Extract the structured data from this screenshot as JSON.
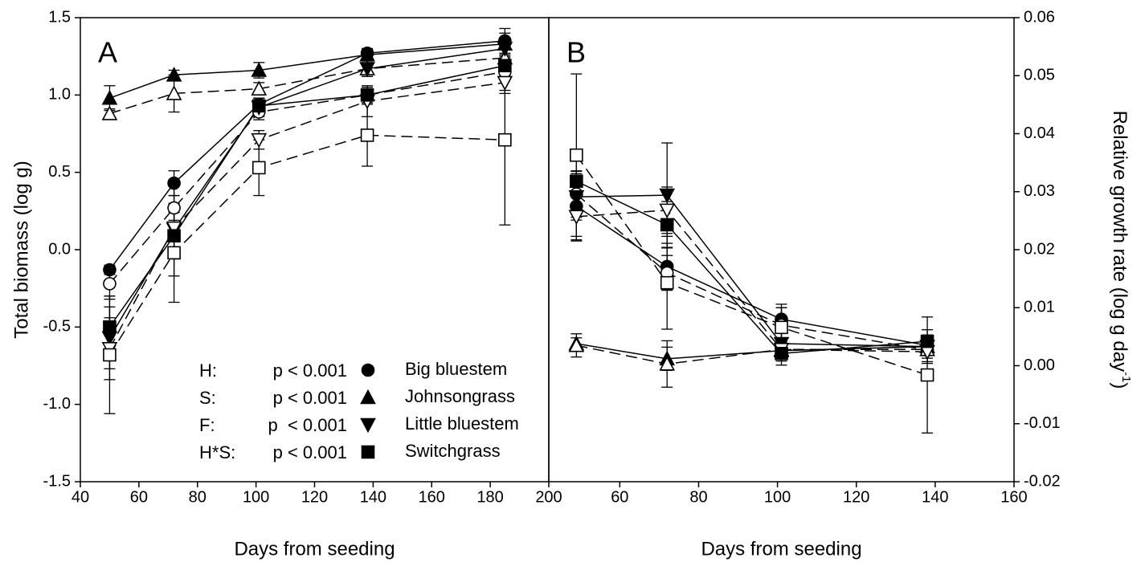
{
  "chart_data": [
    {
      "type": "line",
      "panel_label": "A",
      "xlabel": "Days from seeding",
      "ylabel": "Total biomass (log g)",
      "x": [
        50,
        72,
        101,
        138,
        185
      ],
      "xlim": [
        40,
        200
      ],
      "xticks": [
        40,
        60,
        80,
        100,
        120,
        140,
        160,
        180,
        200
      ],
      "ylim": [
        -1.5,
        1.5
      ],
      "yticks": [
        -1.5,
        {
          "value": -1,
          "label": "-1.0"
        },
        -0.5,
        {
          "value": 0,
          "label": "0.0"
        },
        0.5,
        {
          "value": 1,
          "label": "1.0"
        },
        1.5
      ],
      "legend": "lower right",
      "stats": [
        {
          "term": "H:",
          "p": "p < 0.001"
        },
        {
          "term": "S:",
          "p": "p < 0.001"
        },
        {
          "term": "F:",
          "p": "p  < 0.001"
        },
        {
          "term": "H*S:",
          "p": "p < 0.001"
        }
      ],
      "series": [
        {
          "name": "Big bluestem",
          "marker": "circle",
          "filled": true,
          "dash": false,
          "color": "#000000",
          "values": [
            -0.13,
            0.43,
            0.94,
            1.27,
            1.35
          ],
          "errors": [
            0.03,
            0.08,
            0.04,
            0.03,
            0.05
          ]
        },
        {
          "marker": "circle",
          "filled": false,
          "dash": true,
          "color": "#000000",
          "values": [
            -0.22,
            0.27,
            0.89,
            1.0,
            1.15
          ],
          "errors": [
            0.1,
            0.08,
            0.05,
            0.05,
            0.12
          ]
        },
        {
          "name": "Johnsongrass",
          "marker": "triangle-up",
          "filled": true,
          "dash": false,
          "color": "#000000",
          "values": [
            0.98,
            1.13,
            1.16,
            1.26,
            1.33
          ],
          "errors": [
            0.08,
            0.03,
            0.05,
            0.04,
            0.1
          ]
        },
        {
          "marker": "triangle-up",
          "filled": false,
          "dash": true,
          "color": "#000000",
          "values": [
            0.88,
            1.01,
            1.04,
            1.17,
            1.24
          ],
          "errors": [
            0.03,
            0.12,
            0.04,
            0.05,
            0.08
          ]
        },
        {
          "name": "Little bluestem",
          "marker": "triangle-down",
          "filled": true,
          "dash": false,
          "color": "#000000",
          "values": [
            -0.57,
            0.13,
            0.92,
            1.17,
            1.3
          ],
          "errors": [
            0.2,
            0.3,
            0.06,
            0.05,
            0.06
          ]
        },
        {
          "marker": "triangle-down",
          "filled": false,
          "dash": true,
          "color": "#000000",
          "values": [
            -0.64,
            0.14,
            0.71,
            0.96,
            1.08
          ],
          "errors": [
            0.2,
            0.15,
            0.06,
            0.1,
            0.07
          ]
        },
        {
          "name": "Switchgrass",
          "marker": "square",
          "filled": true,
          "dash": false,
          "color": "#000000",
          "values": [
            -0.5,
            0.09,
            0.93,
            1.0,
            1.19
          ],
          "errors": [
            0.2,
            0.15,
            0.05,
            0.05,
            0.06
          ]
        },
        {
          "marker": "square",
          "filled": false,
          "dash": true,
          "color": "#000000",
          "values": [
            -0.68,
            -0.02,
            0.53,
            0.74,
            0.71
          ],
          "errors": [
            0.38,
            0.32,
            0.18,
            0.2,
            0.55
          ]
        }
      ]
    },
    {
      "type": "line",
      "panel_label": "B",
      "xlabel": "Days from seeding",
      "y2label": [
        "Relative growth rate (log g day",
        "-1",
        ")"
      ],
      "x": [
        49,
        72,
        101,
        138
      ],
      "xlim": [
        42,
        160
      ],
      "xticks": [
        60,
        80,
        100,
        120,
        140,
        160
      ],
      "y2lim": [
        -0.02,
        0.06
      ],
      "y2ticks": [
        -0.02,
        -0.01,
        {
          "value": 0,
          "label": "0.00"
        },
        0.01,
        0.02,
        0.03,
        0.04,
        0.05,
        0.06
      ],
      "series": [
        {
          "axis": "y2",
          "marker": "circle",
          "filled": true,
          "dash": false,
          "color": "#000000",
          "values": [
            0.0275,
            0.0171,
            0.008,
            0.0035
          ],
          "errors": [
            0.006,
            0.004,
            0.002,
            0.001
          ]
        },
        {
          "axis": "y2",
          "marker": "circle",
          "filled": false,
          "dash": true,
          "color": "#000000",
          "values": [
            0.0296,
            0.016,
            0.007,
            0.0027
          ],
          "errors": [
            0.004,
            0.003,
            0.003,
            0.002
          ]
        },
        {
          "axis": "y2",
          "marker": "triangle-up",
          "filled": true,
          "dash": false,
          "color": "#000000",
          "values": [
            0.0038,
            0.0012,
            0.0026,
            0.0033
          ],
          "errors": [
            0.001,
            0.002,
            0.001,
            0.001
          ]
        },
        {
          "axis": "y2",
          "marker": "triangle-up",
          "filled": false,
          "dash": true,
          "color": "#000000",
          "values": [
            0.0035,
            0.0003,
            0.0028,
            0.0028
          ],
          "errors": [
            0.002,
            0.004,
            0.001,
            0.001
          ]
        },
        {
          "axis": "y2",
          "marker": "triangle-down",
          "filled": true,
          "dash": false,
          "color": "#000000",
          "values": [
            0.0291,
            0.0294,
            0.0038,
            0.0033
          ],
          "errors": [
            0.004,
            0.009,
            0.002,
            0.002
          ]
        },
        {
          "axis": "y2",
          "marker": "triangle-down",
          "filled": false,
          "dash": true,
          "color": "#000000",
          "values": [
            0.0257,
            0.0268,
            0.0028,
            0.0024
          ],
          "errors": [
            0.004,
            0.004,
            0.002,
            0.002
          ]
        },
        {
          "axis": "y2",
          "marker": "square",
          "filled": true,
          "dash": false,
          "color": "#000000",
          "values": [
            0.0318,
            0.0243,
            0.0021,
            0.0042
          ],
          "errors": [
            0.005,
            0.004,
            0.002,
            0.002
          ]
        },
        {
          "axis": "y2",
          "marker": "square",
          "filled": false,
          "dash": true,
          "color": "#000000",
          "values": [
            0.0363,
            0.0143,
            0.0066,
            -0.0016
          ],
          "errors": [
            0.014,
            0.008,
            0.004,
            0.01
          ]
        }
      ]
    }
  ]
}
